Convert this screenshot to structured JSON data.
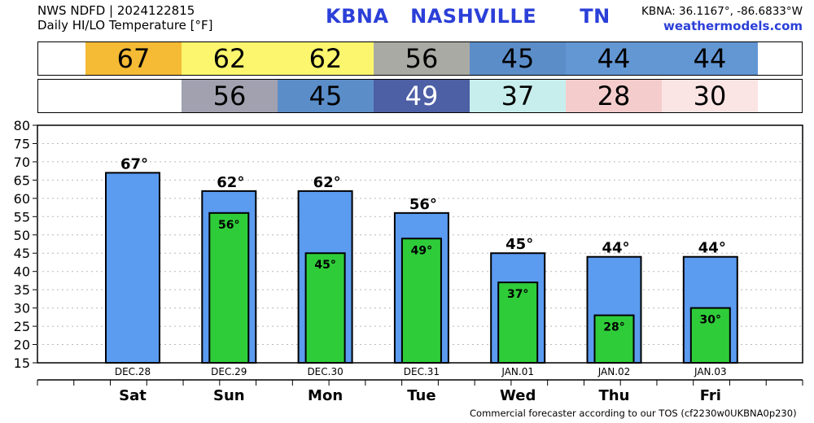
{
  "header": {
    "line1": "NWS NDFD | 2024122815",
    "line2": "Daily HI/LO Temperature [°F]",
    "station_title": "KBNA   NASHVILLE      TN",
    "coords": "KBNA: 36.1167°, -86.6833°W",
    "site": "weathermodels.com"
  },
  "colors": {
    "hi_bar": "#5b9bf0",
    "lo_bar": "#2fcc3a",
    "title_blue": "#2b3fd8"
  },
  "hi_strip": [
    {
      "value": "67",
      "bg": "#f5bb35",
      "fg": "#000000"
    },
    {
      "value": "62",
      "bg": "#fbf66e",
      "fg": "#000000"
    },
    {
      "value": "62",
      "bg": "#fbf66e",
      "fg": "#000000"
    },
    {
      "value": "56",
      "bg": "#aaaaa4",
      "fg": "#000000"
    },
    {
      "value": "45",
      "bg": "#5b8dc9",
      "fg": "#000000"
    },
    {
      "value": "44",
      "bg": "#6397d4",
      "fg": "#000000"
    },
    {
      "value": "44",
      "bg": "#6397d4",
      "fg": "#000000"
    }
  ],
  "lo_strip": [
    {
      "value": "",
      "bg": "#ffffff",
      "fg": "#000000"
    },
    {
      "value": "56",
      "bg": "#a1a1b0",
      "fg": "#000000"
    },
    {
      "value": "45",
      "bg": "#5b8dc9",
      "fg": "#000000"
    },
    {
      "value": "49",
      "bg": "#4d5fa5",
      "fg": "#ffffff"
    },
    {
      "value": "37",
      "bg": "#c7eeec",
      "fg": "#000000"
    },
    {
      "value": "28",
      "bg": "#f5cccc",
      "fg": "#000000"
    },
    {
      "value": "30",
      "bg": "#fbe4e4",
      "fg": "#000000"
    }
  ],
  "chart_data": {
    "type": "bar",
    "categories": [
      "DEC.28",
      "DEC.29",
      "DEC.30",
      "DEC.31",
      "JAN.01",
      "JAN.02",
      "JAN.03"
    ],
    "days": [
      "Sat",
      "Sun",
      "Mon",
      "Tue",
      "Wed",
      "Thu",
      "Fri"
    ],
    "series": [
      {
        "values": [
          67,
          62,
          62,
          56,
          45,
          44,
          44
        ],
        "labels": [
          "67°",
          "62°",
          "62°",
          "56°",
          "45°",
          "44°",
          "44°"
        ]
      },
      {
        "values": [
          null,
          56,
          45,
          49,
          37,
          28,
          30
        ],
        "labels": [
          "",
          "56°",
          "45°",
          "49°",
          "37°",
          "28°",
          "30°"
        ]
      }
    ],
    "ylim": [
      15,
      80
    ],
    "yticks": [
      "15",
      "20",
      "25",
      "30",
      "35",
      "40",
      "45",
      "50",
      "55",
      "60",
      "65",
      "70",
      "75",
      "80"
    ],
    "grid": true
  },
  "footer": "Commercial forecaster according to our TOS (cf2230w0UKBNA0p230)"
}
